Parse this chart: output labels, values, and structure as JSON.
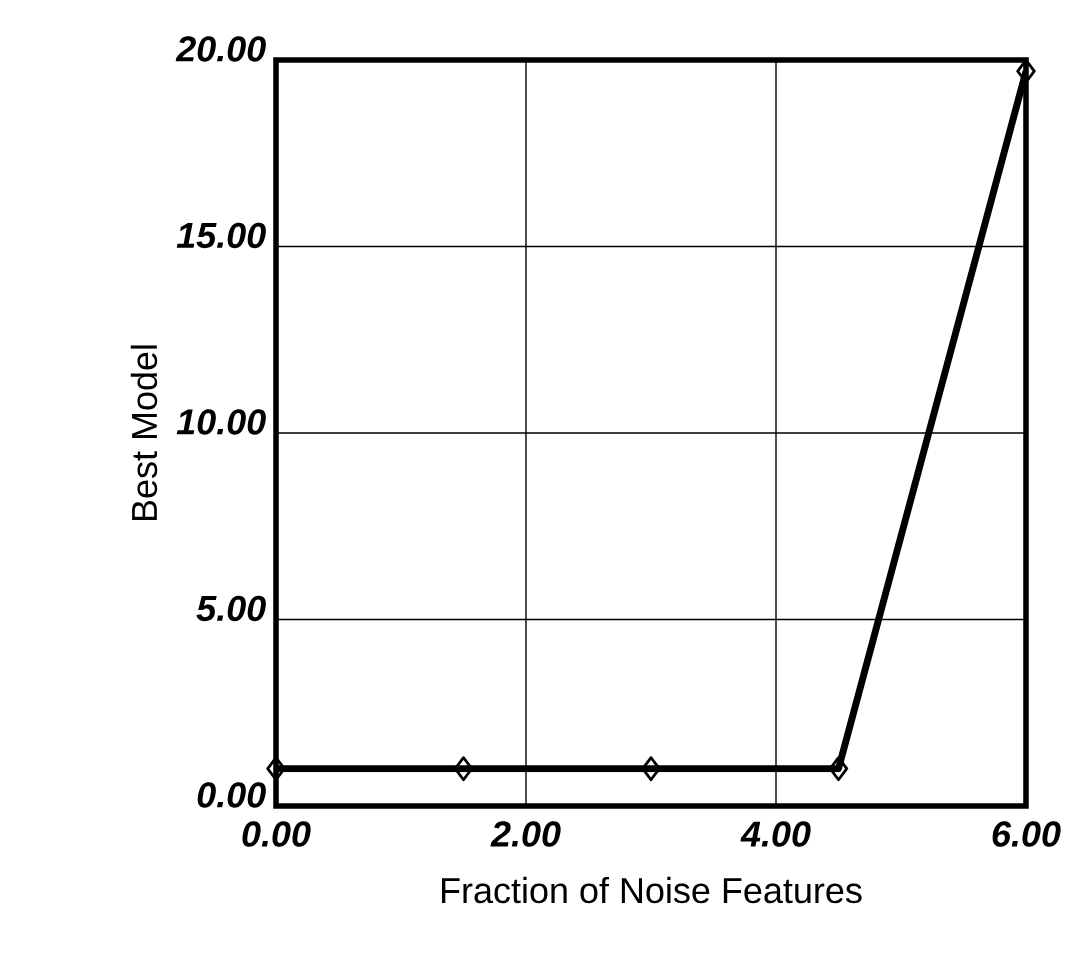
{
  "chart_data": {
    "type": "line",
    "xlabel": "Fraction of Noise Features",
    "ylabel": "Best Model",
    "x": [
      0,
      1.5,
      3,
      4.5,
      6
    ],
    "series": [
      {
        "color": "#000000",
        "values": [
          1,
          1,
          1,
          1,
          19.7
        ]
      }
    ],
    "xlim": [
      0,
      6
    ],
    "ylim": [
      0,
      20
    ],
    "xticks": [
      {
        "value": 0,
        "label": "0.00"
      },
      {
        "value": 2,
        "label": "2.00"
      },
      {
        "value": 4,
        "label": "4.00"
      },
      {
        "value": 6,
        "label": "6.00"
      }
    ],
    "yticks": [
      {
        "value": 0,
        "label": "0.00"
      },
      {
        "value": 5,
        "label": "5.00"
      },
      {
        "value": 10,
        "label": "10.00"
      },
      {
        "value": 15,
        "label": "15.00"
      },
      {
        "value": 20,
        "label": "20.00"
      }
    ],
    "grid": true,
    "marker": "diamond",
    "line_style": "solid"
  }
}
